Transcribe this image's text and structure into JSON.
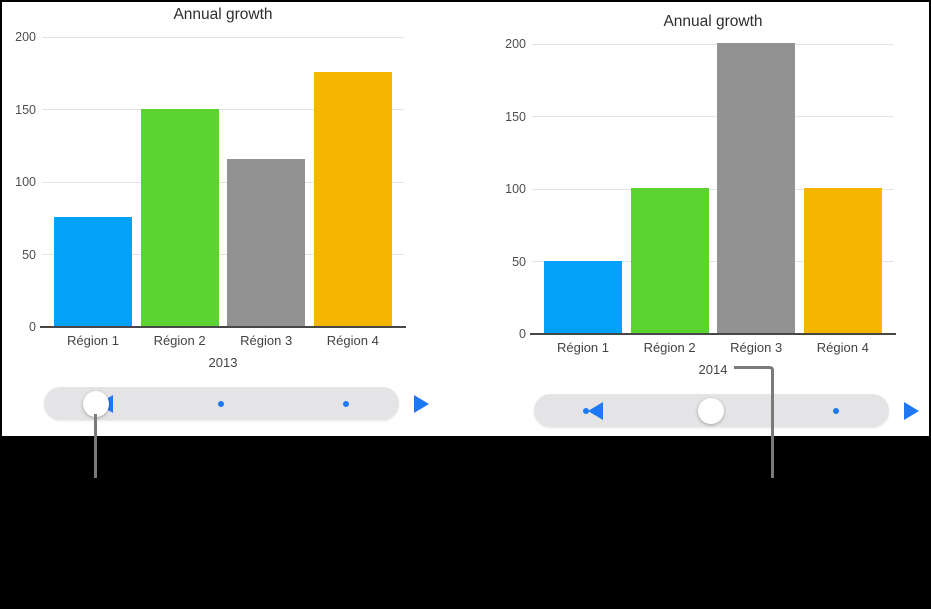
{
  "figure": {
    "background": "#000000",
    "panel_background": "#ffffff",
    "callout_color": "#7a7a7a",
    "gridline_color": "#e3e3e3",
    "axis_line_color": "#474747"
  },
  "chart_data": [
    {
      "type": "bar",
      "title": "Annual growth",
      "x_group_label": "2013",
      "categories": [
        "Région 1",
        "Région 2",
        "Région 3",
        "Région 4"
      ],
      "values": [
        75,
        150,
        115,
        175
      ],
      "bar_colors": [
        "#04A1F9",
        "#5BD432",
        "#929292",
        "#F6B501"
      ],
      "yticks": [
        0,
        50,
        100,
        150,
        200
      ],
      "ylim": [
        0,
        200
      ],
      "xlabel": "",
      "ylabel": "",
      "grid": true,
      "legend": "none"
    },
    {
      "type": "bar",
      "title": "Annual growth",
      "x_group_label": "2014",
      "categories": [
        "Région 1",
        "Région 2",
        "Région 3",
        "Région 4"
      ],
      "values": [
        50,
        100,
        200,
        100
      ],
      "bar_colors": [
        "#04A1F9",
        "#5BD432",
        "#929292",
        "#F6B501"
      ],
      "yticks": [
        0,
        50,
        100,
        150,
        200
      ],
      "ylim": [
        0,
        200
      ],
      "xlabel": "",
      "ylabel": "",
      "grid": true,
      "legend": "none"
    }
  ],
  "sliders": [
    {
      "positions": 3,
      "selected": 0,
      "track_color": "#E4E4E6",
      "accent_color": "#1E78F2"
    },
    {
      "positions": 3,
      "selected": 1,
      "track_color": "#E4E4E6",
      "accent_color": "#1E78F2"
    }
  ]
}
